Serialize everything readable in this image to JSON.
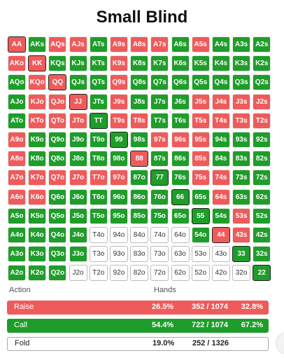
{
  "title": "Small Blind",
  "grid": [
    [
      [
        "AA",
        "raise"
      ],
      [
        "AKs",
        "call"
      ],
      [
        "AQs",
        "raise"
      ],
      [
        "AJs",
        "raise"
      ],
      [
        "ATs",
        "call"
      ],
      [
        "A9s",
        "raise"
      ],
      [
        "A8s",
        "raise"
      ],
      [
        "A7s",
        "raise"
      ],
      [
        "A6s",
        "call"
      ],
      [
        "A5s",
        "raise"
      ],
      [
        "A4s",
        "call"
      ],
      [
        "A3s",
        "call"
      ],
      [
        "A2s",
        "call"
      ]
    ],
    [
      [
        "AKo",
        "raise"
      ],
      [
        "KK",
        "raise"
      ],
      [
        "KQs",
        "call"
      ],
      [
        "KJs",
        "call"
      ],
      [
        "KTs",
        "call"
      ],
      [
        "K9s",
        "raise"
      ],
      [
        "K8s",
        "call"
      ],
      [
        "K7s",
        "call"
      ],
      [
        "K6s",
        "call"
      ],
      [
        "K5s",
        "call"
      ],
      [
        "K4s",
        "call"
      ],
      [
        "K3s",
        "call"
      ],
      [
        "K2s",
        "call"
      ]
    ],
    [
      [
        "AQo",
        "call"
      ],
      [
        "KQo",
        "raise"
      ],
      [
        "QQ",
        "raise"
      ],
      [
        "QJs",
        "call"
      ],
      [
        "QTs",
        "call"
      ],
      [
        "Q9s",
        "raise"
      ],
      [
        "Q8s",
        "call"
      ],
      [
        "Q7s",
        "call"
      ],
      [
        "Q6s",
        "call"
      ],
      [
        "Q5s",
        "call"
      ],
      [
        "Q4s",
        "call"
      ],
      [
        "Q3s",
        "call"
      ],
      [
        "Q2s",
        "call"
      ]
    ],
    [
      [
        "AJo",
        "call"
      ],
      [
        "KJo",
        "raise"
      ],
      [
        "QJo",
        "raise"
      ],
      [
        "JJ",
        "raise"
      ],
      [
        "JTs",
        "call"
      ],
      [
        "J9s",
        "raise"
      ],
      [
        "J8s",
        "call"
      ],
      [
        "J7s",
        "call"
      ],
      [
        "J6s",
        "call"
      ],
      [
        "J5s",
        "raise"
      ],
      [
        "J4s",
        "raise"
      ],
      [
        "J3s",
        "raise"
      ],
      [
        "J2s",
        "raise"
      ]
    ],
    [
      [
        "ATo",
        "call"
      ],
      [
        "KTo",
        "raise"
      ],
      [
        "QTo",
        "raise"
      ],
      [
        "JTo",
        "raise"
      ],
      [
        "TT",
        "call"
      ],
      [
        "T9s",
        "raise"
      ],
      [
        "T8s",
        "raise"
      ],
      [
        "T7s",
        "call"
      ],
      [
        "T6s",
        "call"
      ],
      [
        "T5s",
        "raise"
      ],
      [
        "T4s",
        "raise"
      ],
      [
        "T3s",
        "raise"
      ],
      [
        "T2s",
        "raise"
      ]
    ],
    [
      [
        "A9o",
        "raise"
      ],
      [
        "K9o",
        "call"
      ],
      [
        "Q9o",
        "call"
      ],
      [
        "J9o",
        "call"
      ],
      [
        "T9o",
        "call"
      ],
      [
        "99",
        "call"
      ],
      [
        "98s",
        "call"
      ],
      [
        "97s",
        "raise"
      ],
      [
        "96s",
        "raise"
      ],
      [
        "95s",
        "raise"
      ],
      [
        "94s",
        "call"
      ],
      [
        "93s",
        "call"
      ],
      [
        "92s",
        "call"
      ]
    ],
    [
      [
        "A8o",
        "raise"
      ],
      [
        "K8o",
        "call"
      ],
      [
        "Q8o",
        "call"
      ],
      [
        "J8o",
        "call"
      ],
      [
        "T8o",
        "call"
      ],
      [
        "98o",
        "call"
      ],
      [
        "88",
        "raise"
      ],
      [
        "87s",
        "call"
      ],
      [
        "86s",
        "call"
      ],
      [
        "85s",
        "raise"
      ],
      [
        "84s",
        "call"
      ],
      [
        "83s",
        "call"
      ],
      [
        "82s",
        "call"
      ]
    ],
    [
      [
        "A7o",
        "raise"
      ],
      [
        "K7o",
        "raise"
      ],
      [
        "Q7o",
        "raise"
      ],
      [
        "J7o",
        "raise"
      ],
      [
        "T7o",
        "raise"
      ],
      [
        "97o",
        "raise"
      ],
      [
        "87o",
        "call"
      ],
      [
        "77",
        "call"
      ],
      [
        "76s",
        "call"
      ],
      [
        "75s",
        "raise"
      ],
      [
        "74s",
        "raise"
      ],
      [
        "73s",
        "call"
      ],
      [
        "72s",
        "call"
      ]
    ],
    [
      [
        "A6o",
        "raise"
      ],
      [
        "K6o",
        "raise"
      ],
      [
        "Q6o",
        "call"
      ],
      [
        "J6o",
        "call"
      ],
      [
        "T6o",
        "call"
      ],
      [
        "96o",
        "call"
      ],
      [
        "86o",
        "call"
      ],
      [
        "76o",
        "call"
      ],
      [
        "66",
        "call"
      ],
      [
        "65s",
        "call"
      ],
      [
        "64s",
        "raise"
      ],
      [
        "63s",
        "call"
      ],
      [
        "62s",
        "call"
      ]
    ],
    [
      [
        "A5o",
        "call"
      ],
      [
        "K5o",
        "call"
      ],
      [
        "Q5o",
        "call"
      ],
      [
        "J5o",
        "call"
      ],
      [
        "T5o",
        "call"
      ],
      [
        "95o",
        "call"
      ],
      [
        "85o",
        "call"
      ],
      [
        "75o",
        "call"
      ],
      [
        "65o",
        "call"
      ],
      [
        "55",
        "call"
      ],
      [
        "54s",
        "call"
      ],
      [
        "53s",
        "raise"
      ],
      [
        "52s",
        "call"
      ]
    ],
    [
      [
        "A4o",
        "call"
      ],
      [
        "K4o",
        "call"
      ],
      [
        "Q4o",
        "call"
      ],
      [
        "J4o",
        "call"
      ],
      [
        "T4o",
        "fold"
      ],
      [
        "94o",
        "fold"
      ],
      [
        "84o",
        "fold"
      ],
      [
        "74o",
        "fold"
      ],
      [
        "64o",
        "fold"
      ],
      [
        "54o",
        "call"
      ],
      [
        "44",
        "raise"
      ],
      [
        "43s",
        "raise"
      ],
      [
        "42s",
        "call"
      ]
    ],
    [
      [
        "A3o",
        "call"
      ],
      [
        "K3o",
        "call"
      ],
      [
        "Q3o",
        "call"
      ],
      [
        "J3o",
        "call"
      ],
      [
        "T3o",
        "fold"
      ],
      [
        "93o",
        "fold"
      ],
      [
        "83o",
        "fold"
      ],
      [
        "73o",
        "fold"
      ],
      [
        "63o",
        "fold"
      ],
      [
        "53o",
        "fold"
      ],
      [
        "43o",
        "fold"
      ],
      [
        "33",
        "call"
      ],
      [
        "32s",
        "call"
      ]
    ],
    [
      [
        "A2o",
        "call"
      ],
      [
        "K2o",
        "call"
      ],
      [
        "Q2o",
        "call"
      ],
      [
        "J2o",
        "fold"
      ],
      [
        "T2o",
        "fold"
      ],
      [
        "92o",
        "fold"
      ],
      [
        "82o",
        "fold"
      ],
      [
        "72o",
        "fold"
      ],
      [
        "62o",
        "fold"
      ],
      [
        "52o",
        "fold"
      ],
      [
        "42o",
        "fold"
      ],
      [
        "32o",
        "fold"
      ],
      [
        "22",
        "call"
      ]
    ]
  ],
  "table": {
    "header_action": "Action",
    "header_hands": "Hands",
    "rows": [
      {
        "action": "Raise",
        "pct": "26.5%",
        "combos": "352 / 1074",
        "rel": "32.8%",
        "color": "#ef5b5b"
      },
      {
        "action": "Call",
        "pct": "54.4%",
        "combos": "722 / 1074",
        "rel": "67.2%",
        "color": "#1f9d2a"
      },
      {
        "action": "Fold",
        "pct": "19.0%",
        "combos": "252 / 1326",
        "rel": "",
        "color": "#ffffff"
      }
    ]
  }
}
